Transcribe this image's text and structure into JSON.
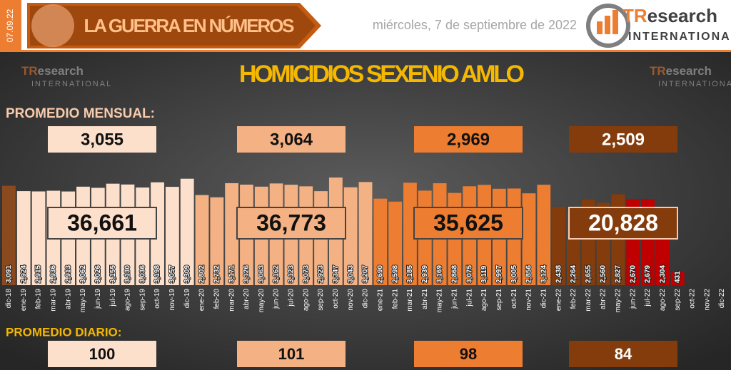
{
  "header": {
    "date_tag": "07.09.22",
    "section_title": "LA GUERRA EN NÚMEROS",
    "date": "miércoles, 7 de septiembre de 2022"
  },
  "logo": {
    "initial": "TR",
    "name": "esearch",
    "sub": "INTERNATIONAL"
  },
  "chart_data": {
    "type": "bar",
    "title": "HOMICIDIOS SEXENIO AMLO",
    "categories": [
      "dic-18",
      "ene-19",
      "feb-19",
      "mar-19",
      "abr-19",
      "may-19",
      "jun-19",
      "jul-19",
      "ago-19",
      "sep-19",
      "oct-19",
      "nov-19",
      "dic-19",
      "ene-20",
      "feb-20",
      "mar-20",
      "abr-20",
      "may-20",
      "jun-20",
      "jul-20",
      "ago-20",
      "sep-20",
      "oct-20",
      "nov-20",
      "dic-20",
      "ene-21",
      "feb-21",
      "mar-21",
      "abr-21",
      "may-21",
      "jun-21",
      "jul-21",
      "ago-21",
      "sep-21",
      "oct-21",
      "nov-21",
      "dic-21",
      "ene-22",
      "feb-22",
      "mar-22",
      "abr-22",
      "may-22",
      "jun-22",
      "jul-22",
      "ago-22",
      "sep-22",
      "oct-22",
      "nov-22",
      "dic-22"
    ],
    "values": [
      3091,
      2924,
      2915,
      2936,
      2913,
      3062,
      3026,
      3155,
      3130,
      3036,
      3198,
      3057,
      3309,
      2802,
      2732,
      3171,
      3126,
      3063,
      3162,
      3123,
      3073,
      2923,
      3347,
      3043,
      3207,
      2690,
      2598,
      3185,
      2939,
      3169,
      2868,
      3075,
      3119,
      2997,
      3005,
      2856,
      3124,
      2438,
      2264,
      2655,
      2560,
      2827,
      2670,
      2679,
      2304,
      431,
      null,
      null,
      null
    ],
    "value_labels": [
      "3,091",
      "2,924",
      "2,915",
      "2,936",
      "2,913",
      "3,062",
      "3,026",
      "3,155",
      "3,130",
      "3,036",
      "3,198",
      "3,057",
      "3,309",
      "2,802",
      "2,732",
      "3,171",
      "3,126",
      "3,063",
      "3,162",
      "3,123",
      "3,073",
      "2,923",
      "3,347",
      "3,043",
      "3,207",
      "2,690",
      "2,598",
      "3,185",
      "2,939",
      "3,169",
      "2,868",
      "3,075",
      "3,119",
      "2,997",
      "3,005",
      "2,856",
      "3,124",
      "2,438",
      "2,264",
      "2,655",
      "2,560",
      "2,827",
      "2,670",
      "2,679",
      "2,304",
      "431",
      null,
      null,
      null
    ],
    "colors": [
      "#8b4a1e",
      "#fde0cc",
      "#fde0cc",
      "#fde0cc",
      "#fde0cc",
      "#fde0cc",
      "#fde0cc",
      "#fde0cc",
      "#fde0cc",
      "#fde0cc",
      "#fde0cc",
      "#fde0cc",
      "#fde0cc",
      "#f4b183",
      "#f4b183",
      "#f4b183",
      "#f4b183",
      "#f4b183",
      "#f4b183",
      "#f4b183",
      "#f4b183",
      "#f4b183",
      "#f4b183",
      "#f4b183",
      "#f4b183",
      "#ed7d31",
      "#ed7d31",
      "#ed7d31",
      "#ed7d31",
      "#ed7d31",
      "#ed7d31",
      "#ed7d31",
      "#ed7d31",
      "#ed7d31",
      "#ed7d31",
      "#ed7d31",
      "#ed7d31",
      "#843c0c",
      "#843c0c",
      "#843c0c",
      "#843c0c",
      "#843c0c",
      "#c00000",
      "#c00000",
      "#c00000",
      "#c00000",
      "#843c0c",
      "#843c0c",
      "#843c0c"
    ],
    "monthly_label": "PROMEDIO MENSUAL:",
    "daily_label": "PROMEDIO DIARIO:",
    "summaries": [
      {
        "color": "#fde0cc",
        "monthly": {
          "value": 3055,
          "label": "3,055"
        },
        "total": {
          "value": 36661,
          "label": "36,661"
        },
        "daily": 100
      },
      {
        "color": "#f4b183",
        "monthly": {
          "value": 3064,
          "label": "3,064"
        },
        "total": {
          "value": 36773,
          "label": "36,773"
        },
        "daily": 101
      },
      {
        "color": "#ed7d31",
        "monthly": {
          "value": 2969,
          "label": "2,969"
        },
        "total": {
          "value": 35625,
          "label": "35,625"
        },
        "daily": 98
      },
      {
        "color": "#843c0c",
        "monthly": {
          "value": 2509,
          "label": "2,509"
        },
        "total": {
          "value": 20828,
          "label": "20,828"
        },
        "daily": 84
      }
    ]
  }
}
